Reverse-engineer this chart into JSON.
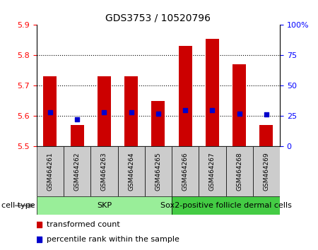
{
  "title": "GDS3753 / 10520796",
  "samples": [
    "GSM464261",
    "GSM464262",
    "GSM464263",
    "GSM464264",
    "GSM464265",
    "GSM464266",
    "GSM464267",
    "GSM464268",
    "GSM464269"
  ],
  "transformed_counts": [
    5.73,
    5.57,
    5.73,
    5.73,
    5.65,
    5.83,
    5.855,
    5.77,
    5.57
  ],
  "percentile_ranks": [
    28,
    22,
    28,
    28,
    27,
    30,
    30,
    27,
    26
  ],
  "ylim_left": [
    5.5,
    5.9
  ],
  "ylim_right": [
    0,
    100
  ],
  "yticks_left": [
    5.5,
    5.6,
    5.7,
    5.8,
    5.9
  ],
  "yticks_right": [
    0,
    25,
    50,
    75,
    100
  ],
  "ytick_right_labels": [
    "0",
    "25",
    "50",
    "75",
    "100%"
  ],
  "bar_color": "#cc0000",
  "dot_color": "#0000cc",
  "baseline": 5.5,
  "group1_label": "SKP",
  "group2_label": "Sox2-positive follicle dermal cells",
  "group1_count": 5,
  "group2_count": 4,
  "group1_color": "#99ee99",
  "group2_color": "#44cc44",
  "cell_type_label": "cell type",
  "legend_red_label": "transformed count",
  "legend_blue_label": "percentile rank within the sample",
  "bar_width": 0.5,
  "title_fontsize": 10,
  "tick_fontsize": 8,
  "label_fontsize": 8,
  "sample_fontsize": 6.5,
  "group_fontsize": 8
}
